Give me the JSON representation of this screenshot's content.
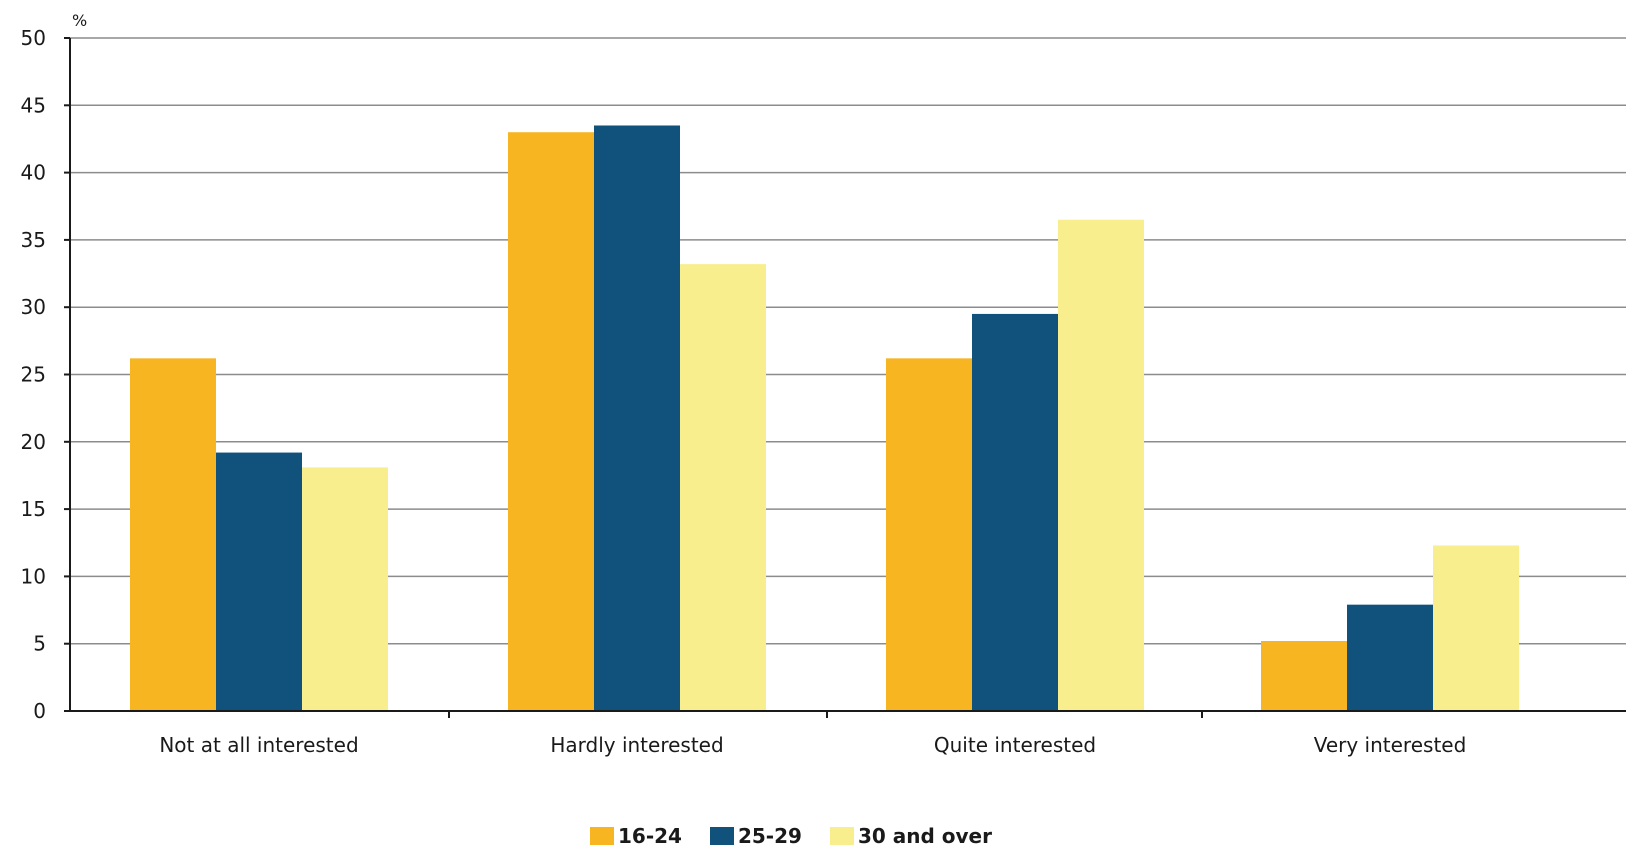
{
  "chart_data": {
    "type": "bar",
    "unit_label": "%",
    "categories": [
      "Not at all interested",
      "Hardly interested",
      "Quite interested",
      "Very interested"
    ],
    "series": [
      {
        "name": "16-24",
        "color": "#f7b521",
        "values": [
          26.2,
          43.0,
          26.2,
          5.2
        ]
      },
      {
        "name": "25-29",
        "color": "#10527c",
        "values": [
          19.2,
          43.5,
          29.5,
          7.9
        ]
      },
      {
        "name": "30 and over",
        "color": "#f8ee8e",
        "values": [
          18.1,
          33.2,
          36.5,
          12.3
        ]
      }
    ],
    "ylim": [
      0,
      50
    ],
    "yticks": [
      0,
      5,
      10,
      15,
      20,
      25,
      30,
      35,
      40,
      45,
      50
    ],
    "grid": true,
    "legend_position": "bottom"
  }
}
